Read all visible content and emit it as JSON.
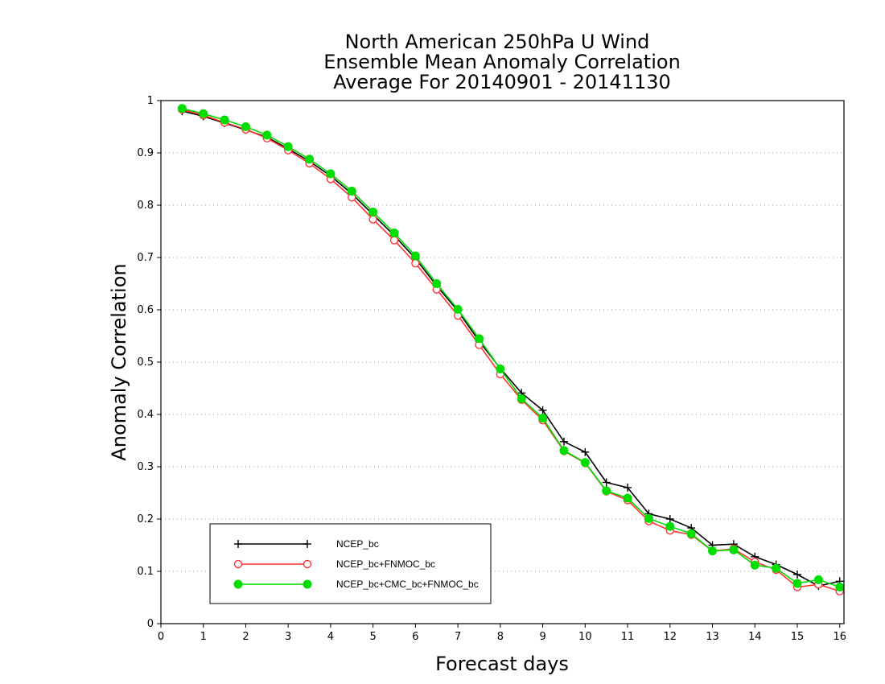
{
  "chart_data": {
    "type": "line",
    "title": [
      "North American 250hPa U Wind",
      "Ensemble Mean Anomaly Correlation",
      "Average For 20140901 - 20141130"
    ],
    "xlabel": "Forecast days",
    "ylabel": "Anomaly Correlation",
    "xlim": [
      0,
      16.1
    ],
    "ylim": [
      0,
      1
    ],
    "xticks": [
      "0",
      "1",
      "2",
      "3",
      "4",
      "5",
      "6",
      "7",
      "8",
      "9",
      "10",
      "11",
      "12",
      "13",
      "14",
      "15",
      "16"
    ],
    "yticks": [
      "0",
      "0.1",
      "0.2",
      "0.3",
      "0.4",
      "0.5",
      "0.6",
      "0.7",
      "0.8",
      "0.9",
      "1"
    ],
    "grid": true,
    "legend_position": "bottom-left",
    "x": [
      0.5,
      1,
      1.5,
      2,
      2.5,
      3,
      3.5,
      4,
      4.5,
      5,
      5.5,
      6,
      6.5,
      7,
      7.5,
      8,
      8.5,
      9,
      9.5,
      10,
      10.5,
      11,
      11.5,
      12,
      12.5,
      13,
      13.5,
      14,
      14.5,
      15,
      15.5,
      16
    ],
    "series": [
      {
        "name": "NCEP_bc",
        "color": "#000000",
        "marker": "plus",
        "values": [
          0.98,
          0.97,
          0.957,
          0.944,
          0.93,
          0.908,
          0.884,
          0.856,
          0.822,
          0.782,
          0.742,
          0.698,
          0.646,
          0.598,
          0.54,
          0.488,
          0.441,
          0.408,
          0.348,
          0.328,
          0.27,
          0.26,
          0.21,
          0.2,
          0.183,
          0.15,
          0.152,
          0.128,
          0.113,
          0.094,
          0.072,
          0.081
        ]
      },
      {
        "name": "NCEP_bc+FNMOC_bc",
        "color": "#ff3333",
        "marker": "open-circle",
        "values": [
          0.983,
          0.972,
          0.958,
          0.945,
          0.928,
          0.905,
          0.88,
          0.85,
          0.815,
          0.773,
          0.733,
          0.689,
          0.639,
          0.589,
          0.533,
          0.477,
          0.428,
          0.389,
          0.33,
          0.307,
          0.253,
          0.236,
          0.196,
          0.178,
          0.17,
          0.139,
          0.143,
          0.118,
          0.103,
          0.07,
          0.075,
          0.062
        ]
      },
      {
        "name": "NCEP_bc+CMC_bc+FNMOC_bc",
        "color": "#00dd00",
        "marker": "filled-circle",
        "values": [
          0.985,
          0.975,
          0.963,
          0.95,
          0.934,
          0.912,
          0.888,
          0.86,
          0.827,
          0.787,
          0.747,
          0.703,
          0.65,
          0.601,
          0.545,
          0.487,
          0.43,
          0.393,
          0.331,
          0.308,
          0.254,
          0.24,
          0.201,
          0.186,
          0.172,
          0.139,
          0.141,
          0.112,
          0.106,
          0.077,
          0.084,
          0.07
        ]
      }
    ]
  }
}
